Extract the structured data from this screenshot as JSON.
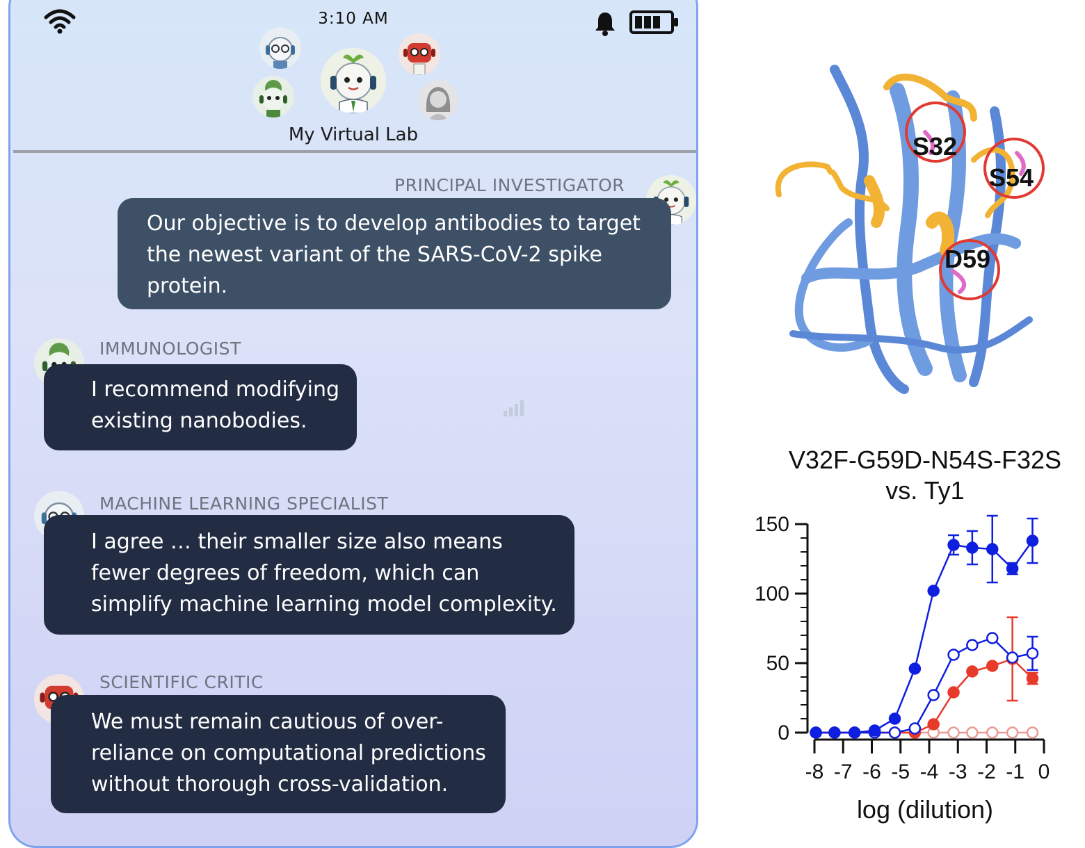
{
  "status_bar": {
    "time": "3:10 AM",
    "icons": [
      "wifi-icon",
      "bell-icon",
      "battery-icon"
    ]
  },
  "header": {
    "title": "My Virtual Lab",
    "avatars": [
      "ml-specialist-avatar",
      "immunologist-avatar",
      "principal-investigator-avatar",
      "scientific-critic-avatar",
      "human-avatar"
    ]
  },
  "messages": [
    {
      "speaker": "PRINCIPAL INVESTIGATOR",
      "lines": [
        "Our objective is to develop antibodies to target",
        "the newest variant of the SARS-CoV-2 spike",
        "protein."
      ]
    },
    {
      "speaker": "IMMUNOLOGIST",
      "lines": [
        "I recommend modifying",
        "existing nanobodies."
      ]
    },
    {
      "speaker": "MACHINE LEARNING SPECIALIST",
      "lines": [
        "I agree … their smaller size also means",
        "fewer degrees of freedom, which can",
        "simplify machine learning model complexity."
      ]
    },
    {
      "speaker": "SCIENTIFIC CRITIC",
      "lines": [
        "We must remain cautious of over-",
        "reliance on computational predictions",
        "without thorough cross-validation."
      ]
    }
  ],
  "protein": {
    "residue_labels": [
      "S32",
      "S54",
      "D59"
    ],
    "colors": {
      "sheet": "#6f9be0",
      "loop": "#f2b234",
      "residue": "#e06ac6",
      "circle": "#e03a32"
    }
  },
  "chart_data": {
    "type": "line",
    "title": "V32F-G59D-N54S-F32S",
    "subtitle": "vs. Ty1",
    "xlabel": "log (dilution)",
    "ylabel": "",
    "xlim": [
      -8,
      0
    ],
    "ylim": [
      0,
      150
    ],
    "x_ticks": [
      "-8",
      "-7",
      "-6",
      "-5",
      "-4",
      "-3",
      "-2",
      "-1",
      "0"
    ],
    "y_ticks": [
      "0",
      "50",
      "100",
      "150"
    ],
    "x": [
      -7.95,
      -7.3,
      -6.6,
      -5.9,
      -5.2,
      -4.5,
      -3.85,
      -3.15,
      -2.5,
      -1.8,
      -1.1,
      -0.4
    ],
    "series": [
      {
        "color": "#0f1fe0",
        "filled": true,
        "values": [
          0,
          0,
          0,
          1.5,
          10,
          46,
          102,
          135,
          133,
          132,
          118,
          138
        ],
        "errors": [
          0,
          0,
          0,
          0,
          0,
          0,
          0,
          7,
          12,
          24,
          4,
          16
        ]
      },
      {
        "color": "#0f1fe0",
        "filled": false,
        "values": [
          0,
          0,
          0,
          0,
          0,
          3,
          27,
          56,
          63,
          68,
          54,
          57
        ],
        "errors": [
          0,
          0,
          0,
          0,
          0,
          0,
          0,
          0,
          0,
          0,
          0,
          12
        ]
      },
      {
        "color": "#e83a2a",
        "filled": true,
        "values": [
          0,
          0,
          0,
          0,
          0,
          0,
          6,
          29,
          44,
          48,
          53,
          39
        ],
        "errors": [
          0,
          0,
          0,
          0,
          0,
          0,
          0,
          0,
          0,
          0,
          30,
          4
        ]
      },
      {
        "color": "#e89a94",
        "filled": false,
        "values": [
          0,
          0,
          0,
          0,
          0,
          0,
          0,
          0,
          0,
          0,
          0,
          0
        ],
        "errors": [
          0,
          0,
          0,
          0,
          0,
          0,
          0,
          0,
          0,
          0,
          0,
          0
        ]
      }
    ],
    "grid": false,
    "legend": "none"
  }
}
